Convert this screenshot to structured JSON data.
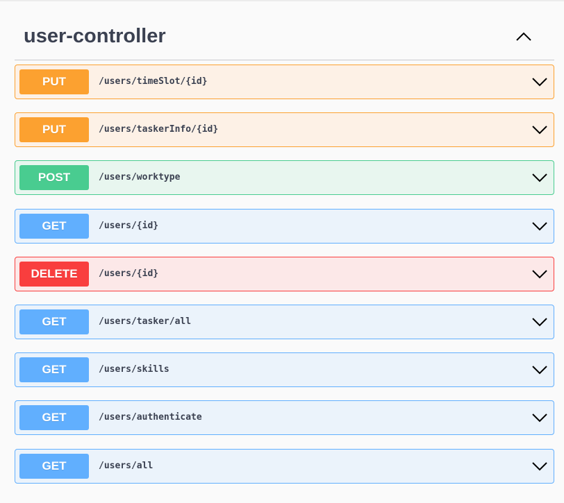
{
  "section": {
    "title": "user-controller",
    "collapse_icon": "chevron-up-icon"
  },
  "colors": {
    "PUT": {
      "badge": "#fca130",
      "bg": "#fdf1e6",
      "border": "#fca130"
    },
    "POST": {
      "badge": "#49cc90",
      "bg": "#e8f6ef",
      "border": "#49cc90"
    },
    "GET": {
      "badge": "#61affe",
      "bg": "#ebf3fb",
      "border": "#61affe"
    },
    "DELETE": {
      "badge": "#f93e3e",
      "bg": "#fce8e8",
      "border": "#f93e3e"
    }
  },
  "operations": [
    {
      "method": "PUT",
      "path": "/users/timeSlot/{id}"
    },
    {
      "method": "PUT",
      "path": "/users/taskerInfo/{id}"
    },
    {
      "method": "POST",
      "path": "/users/worktype"
    },
    {
      "method": "GET",
      "path": "/users/{id}"
    },
    {
      "method": "DELETE",
      "path": "/users/{id}"
    },
    {
      "method": "GET",
      "path": "/users/tasker/all"
    },
    {
      "method": "GET",
      "path": "/users/skills"
    },
    {
      "method": "GET",
      "path": "/users/authenticate"
    },
    {
      "method": "GET",
      "path": "/users/all"
    }
  ]
}
